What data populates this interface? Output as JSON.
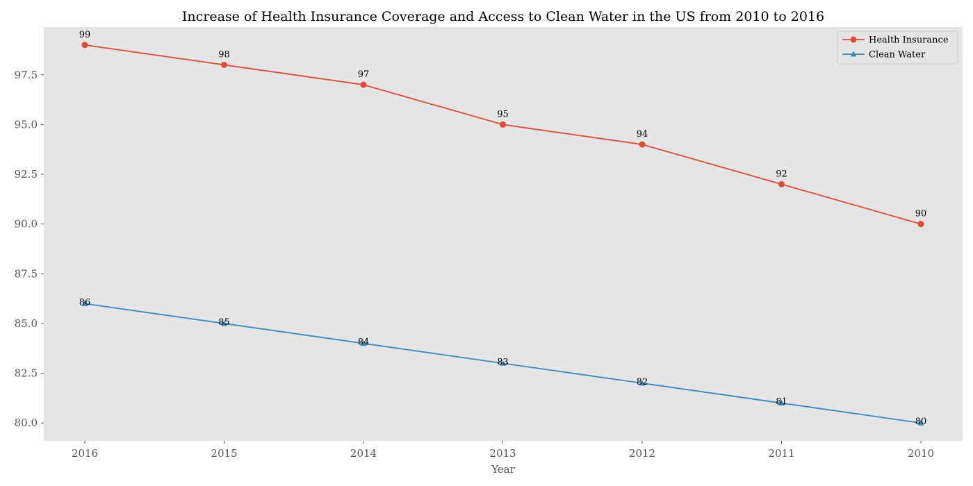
{
  "chart_data": {
    "type": "line",
    "title": "Increase of Health Insurance Coverage and Access to Clean Water in the US from 2010 to 2016",
    "xlabel": "Year",
    "ylabel": "",
    "categories": [
      "2016",
      "2015",
      "2014",
      "2013",
      "2012",
      "2011",
      "2010"
    ],
    "y_ticks": [
      "80.0",
      "82.5",
      "85.0",
      "87.5",
      "90.0",
      "92.5",
      "95.0",
      "97.5"
    ],
    "ylim": [
      79.1,
      99.9
    ],
    "grid": false,
    "legend_position": "top-right",
    "background_color": "#e5e5e5",
    "series": [
      {
        "name": "Health Insurance",
        "values": [
          99,
          98,
          97,
          95,
          94,
          92,
          90
        ],
        "labels": [
          "99",
          "98",
          "97",
          "95",
          "94",
          "92",
          "90"
        ],
        "color": "#e24a33",
        "marker": "circle"
      },
      {
        "name": "Clean Water",
        "values": [
          86,
          85,
          84,
          83,
          82,
          81,
          80
        ],
        "labels": [
          "86",
          "85",
          "84",
          "83",
          "82",
          "81",
          "80"
        ],
        "color": "#348abd",
        "marker": "triangle"
      }
    ]
  }
}
